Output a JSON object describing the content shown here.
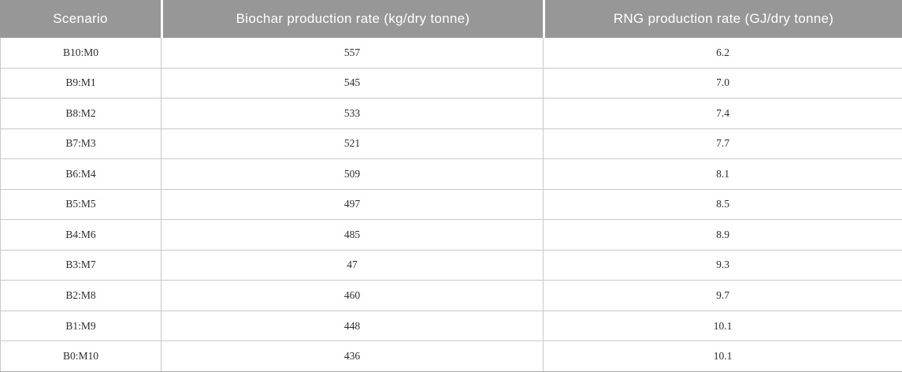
{
  "table": {
    "columns": [
      {
        "id": "scenario",
        "label": "Scenario"
      },
      {
        "id": "biochar",
        "label": "Biochar production rate (kg/dry tonne)"
      },
      {
        "id": "rng",
        "label": "RNG production rate (GJ/dry tonne)"
      }
    ],
    "rows": [
      {
        "scenario": "B10:M0",
        "biochar": "557",
        "rng": "6.2"
      },
      {
        "scenario": "B9:M1",
        "biochar": "545",
        "rng": "7.0"
      },
      {
        "scenario": "B8:M2",
        "biochar": "533",
        "rng": "7.4"
      },
      {
        "scenario": "B7:M3",
        "biochar": "521",
        "rng": "7.7"
      },
      {
        "scenario": "B6:M4",
        "biochar": "509",
        "rng": "8.1"
      },
      {
        "scenario": "B5:M5",
        "biochar": "497",
        "rng": "8.5"
      },
      {
        "scenario": "B4:M6",
        "biochar": "485",
        "rng": "8.9"
      },
      {
        "scenario": "B3:M7",
        "biochar": "47",
        "rng": "9.3"
      },
      {
        "scenario": "B2:M8",
        "biochar": "460",
        "rng": "9.7"
      },
      {
        "scenario": "B1:M9",
        "biochar": "448",
        "rng": "10.1"
      },
      {
        "scenario": "B0:M10",
        "biochar": "436",
        "rng": "10.1"
      }
    ]
  },
  "colors": {
    "header_bg": "#979797",
    "header_text": "#ffffff",
    "grid_line": "#c9c9c9",
    "bottom_line": "#a8a8a8",
    "body_text": "#2e2e2e",
    "row_bg": "#ffffff"
  },
  "chart_data": {
    "type": "table",
    "columns": [
      "Scenario",
      "Biochar production rate (kg/dry tonne)",
      "RNG production rate (GJ/dry tonne)"
    ],
    "rows": [
      [
        "B10:M0",
        557,
        6.2
      ],
      [
        "B9:M1",
        545,
        7.0
      ],
      [
        "B8:M2",
        533,
        7.4
      ],
      [
        "B7:M3",
        521,
        7.7
      ],
      [
        "B6:M4",
        509,
        8.1
      ],
      [
        "B5:M5",
        497,
        8.5
      ],
      [
        "B4:M6",
        485,
        8.9
      ],
      [
        "B3:M7",
        47,
        9.3
      ],
      [
        "B2:M8",
        460,
        9.7
      ],
      [
        "B1:M9",
        448,
        10.1
      ],
      [
        "B0:M10",
        436,
        10.1
      ]
    ]
  }
}
